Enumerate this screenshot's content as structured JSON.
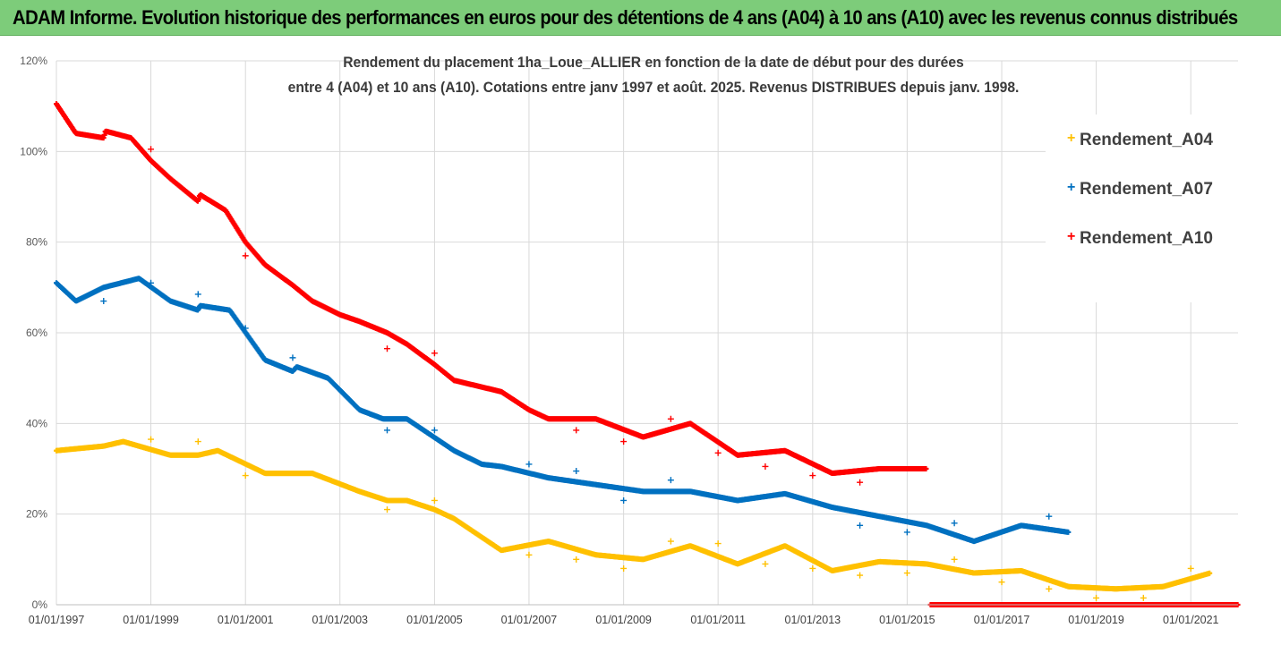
{
  "header": {
    "title": "ADAM Informe. Evolution historique des performances en euros pour des détentions de 4 ans (A04) à 10 ans (A10) avec les revenus connus distribués"
  },
  "chart_data": {
    "type": "scatter",
    "subtitle_line1": "Rendement du placement 1ha_Loue_ALLIER en fonction de la date de début pour des durées",
    "subtitle_line2": "entre 4 (A04) et 10 ans (A10). Cotations entre janv 1997 et août. 2025. Revenus DISTRIBUES depuis janv. 1998.",
    "x_tick_labels": [
      "01/01/1997",
      "01/01/1999",
      "01/01/2001",
      "01/01/2003",
      "01/01/2005",
      "01/01/2007",
      "01/01/2009",
      "01/01/2011",
      "01/01/2013",
      "01/01/2015",
      "01/01/2017",
      "01/01/2019",
      "01/01/2021"
    ],
    "x_tick_years": [
      1997,
      1999,
      2001,
      2003,
      2005,
      2007,
      2009,
      2011,
      2013,
      2015,
      2017,
      2019,
      2021
    ],
    "xlim": [
      "1997-01-01",
      "2022-01-01"
    ],
    "y_tick_labels": [
      "0%",
      "20%",
      "40%",
      "60%",
      "80%",
      "100%",
      "120%"
    ],
    "ylim": [
      0,
      1.2
    ],
    "y_ticks": [
      0,
      0.2,
      0.4,
      0.6,
      0.8,
      1.0,
      1.2
    ],
    "grid": true,
    "legend_position": "right",
    "series": [
      {
        "name": "Rendement_A04",
        "color": "#ffc000",
        "points": [
          [
            "1997-01-01",
            0.34
          ],
          [
            "1998-01-01",
            0.35
          ],
          [
            "1998-06-01",
            0.36
          ],
          [
            "1999-06-01",
            0.33
          ],
          [
            "2000-01-01",
            0.33
          ],
          [
            "2000-06-01",
            0.34
          ],
          [
            "2001-06-01",
            0.29
          ],
          [
            "2002-06-01",
            0.29
          ],
          [
            "2003-06-01",
            0.25
          ],
          [
            "2004-01-01",
            0.23
          ],
          [
            "2004-06-01",
            0.23
          ],
          [
            "2005-01-01",
            0.21
          ],
          [
            "2005-06-01",
            0.19
          ],
          [
            "2006-06-01",
            0.12
          ],
          [
            "2007-06-01",
            0.14
          ],
          [
            "2008-06-01",
            0.11
          ],
          [
            "2009-06-01",
            0.1
          ],
          [
            "2010-06-01",
            0.13
          ],
          [
            "2011-06-01",
            0.09
          ],
          [
            "2012-06-01",
            0.13
          ],
          [
            "2013-06-01",
            0.075
          ],
          [
            "2014-06-01",
            0.095
          ],
          [
            "2015-06-01",
            0.09
          ],
          [
            "2016-06-01",
            0.07
          ],
          [
            "2017-06-01",
            0.075
          ],
          [
            "2018-06-01",
            0.04
          ],
          [
            "2019-06-01",
            0.035
          ],
          [
            "2020-06-01",
            0.04
          ],
          [
            "2021-06-01",
            0.07
          ]
        ],
        "outliers": [
          [
            "1999-01-01",
            0.365
          ],
          [
            "2000-01-01",
            0.36
          ],
          [
            "2001-01-01",
            0.285
          ],
          [
            "2004-01-01",
            0.21
          ],
          [
            "2005-01-01",
            0.23
          ],
          [
            "2007-01-01",
            0.11
          ],
          [
            "2008-01-01",
            0.1
          ],
          [
            "2009-01-01",
            0.08
          ],
          [
            "2010-01-01",
            0.14
          ],
          [
            "2011-01-01",
            0.135
          ],
          [
            "2012-01-01",
            0.09
          ],
          [
            "2013-01-01",
            0.08
          ],
          [
            "2014-01-01",
            0.065
          ],
          [
            "2015-01-01",
            0.07
          ],
          [
            "2016-01-01",
            0.1
          ],
          [
            "2017-01-01",
            0.05
          ],
          [
            "2018-01-01",
            0.035
          ],
          [
            "2019-01-01",
            0.015
          ],
          [
            "2020-01-01",
            0.015
          ],
          [
            "2021-01-01",
            0.08
          ]
        ]
      },
      {
        "name": "Rendement_A07",
        "color": "#0070c0",
        "points": [
          [
            "1997-01-01",
            0.71
          ],
          [
            "1997-06-01",
            0.67
          ],
          [
            "1998-01-01",
            0.7
          ],
          [
            "1998-10-01",
            0.72
          ],
          [
            "1999-06-01",
            0.67
          ],
          [
            "2000-01-01",
            0.65
          ],
          [
            "2000-01-15",
            0.66
          ],
          [
            "2000-09-01",
            0.65
          ],
          [
            "2001-06-01",
            0.54
          ],
          [
            "2002-01-01",
            0.515
          ],
          [
            "2002-02-01",
            0.525
          ],
          [
            "2002-10-01",
            0.5
          ],
          [
            "2003-06-01",
            0.43
          ],
          [
            "2003-12-01",
            0.41
          ],
          [
            "2004-06-01",
            0.41
          ],
          [
            "2005-06-01",
            0.34
          ],
          [
            "2006-01-01",
            0.31
          ],
          [
            "2006-06-01",
            0.305
          ],
          [
            "2007-06-01",
            0.28
          ],
          [
            "2008-06-01",
            0.265
          ],
          [
            "2009-06-01",
            0.25
          ],
          [
            "2010-06-01",
            0.25
          ],
          [
            "2011-06-01",
            0.23
          ],
          [
            "2012-06-01",
            0.245
          ],
          [
            "2013-06-01",
            0.215
          ],
          [
            "2014-06-01",
            0.195
          ],
          [
            "2015-06-01",
            0.175
          ],
          [
            "2016-06-01",
            0.14
          ],
          [
            "2017-06-01",
            0.175
          ],
          [
            "2018-06-01",
            0.16
          ]
        ],
        "outliers": [
          [
            "1998-01-01",
            0.67
          ],
          [
            "1999-01-01",
            0.71
          ],
          [
            "2000-01-01",
            0.685
          ],
          [
            "2001-01-01",
            0.61
          ],
          [
            "2002-01-01",
            0.545
          ],
          [
            "2004-01-01",
            0.385
          ],
          [
            "2005-01-01",
            0.385
          ],
          [
            "2007-01-01",
            0.31
          ],
          [
            "2008-01-01",
            0.295
          ],
          [
            "2009-01-01",
            0.23
          ],
          [
            "2010-01-01",
            0.275
          ],
          [
            "2014-01-01",
            0.175
          ],
          [
            "2015-01-01",
            0.16
          ],
          [
            "2016-01-01",
            0.18
          ],
          [
            "2018-01-01",
            0.195
          ]
        ]
      },
      {
        "name": "Rendement_A10",
        "color": "#ff0000",
        "points": [
          [
            "1997-01-01",
            1.105
          ],
          [
            "1997-06-01",
            1.04
          ],
          [
            "1998-01-01",
            1.03
          ],
          [
            "1998-01-15",
            1.045
          ],
          [
            "1998-08-01",
            1.03
          ],
          [
            "1999-01-01",
            0.98
          ],
          [
            "1999-06-01",
            0.94
          ],
          [
            "2000-01-01",
            0.89
          ],
          [
            "2000-01-15",
            0.905
          ],
          [
            "2000-08-01",
            0.87
          ],
          [
            "2001-01-01",
            0.8
          ],
          [
            "2001-06-01",
            0.75
          ],
          [
            "2002-01-01",
            0.705
          ],
          [
            "2002-06-01",
            0.67
          ],
          [
            "2003-01-01",
            0.64
          ],
          [
            "2003-06-01",
            0.625
          ],
          [
            "2004-01-01",
            0.6
          ],
          [
            "2004-06-01",
            0.575
          ],
          [
            "2005-01-01",
            0.53
          ],
          [
            "2005-06-01",
            0.495
          ],
          [
            "2006-06-01",
            0.47
          ],
          [
            "2007-01-01",
            0.43
          ],
          [
            "2007-06-01",
            0.41
          ],
          [
            "2008-06-01",
            0.41
          ],
          [
            "2009-06-01",
            0.37
          ],
          [
            "2010-06-01",
            0.4
          ],
          [
            "2011-06-01",
            0.33
          ],
          [
            "2012-06-01",
            0.34
          ],
          [
            "2013-06-01",
            0.29
          ],
          [
            "2014-06-01",
            0.3
          ],
          [
            "2015-06-01",
            0.3
          ]
        ],
        "outliers": [
          [
            "1999-01-01",
            1.005
          ],
          [
            "2001-01-01",
            0.77
          ],
          [
            "2004-01-01",
            0.565
          ],
          [
            "2005-01-01",
            0.555
          ],
          [
            "2008-01-01",
            0.385
          ],
          [
            "2009-01-01",
            0.36
          ],
          [
            "2010-01-01",
            0.41
          ],
          [
            "2011-01-01",
            0.335
          ],
          [
            "2012-01-01",
            0.305
          ],
          [
            "2013-01-01",
            0.285
          ],
          [
            "2014-01-01",
            0.27
          ]
        ],
        "zero_range": [
          "2015-07-01",
          "2022-01-01"
        ]
      }
    ]
  }
}
